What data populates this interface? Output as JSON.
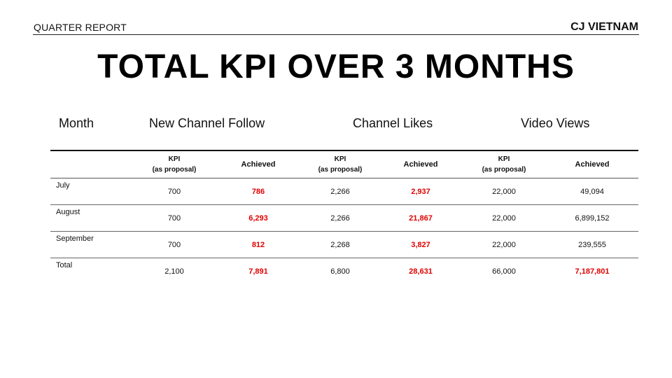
{
  "header": {
    "left_label": "QUARTER REPORT",
    "right_label": "CJ VIETNAM"
  },
  "title": "TOTAL KPI OVER 3 MONTHS",
  "group_headers": {
    "month": "Month",
    "follow": "New Channel Follow",
    "likes": "Channel Likes",
    "views": "Video Views"
  },
  "sub_headers": {
    "kpi_line1": "KPI",
    "kpi_line2": "(as proposal)",
    "achieved": "Achieved"
  },
  "rows": [
    {
      "label": "July",
      "follow_kpi": "700",
      "follow_ach": "786",
      "likes_kpi": "2,266",
      "likes_ach": "2,937",
      "views_kpi": "22,000",
      "views_ach": "49,094"
    },
    {
      "label": "August",
      "follow_kpi": "700",
      "follow_ach": "6,293",
      "likes_kpi": "2,266",
      "likes_ach": "21,867",
      "views_kpi": "22,000",
      "views_ach": "6,899,152"
    },
    {
      "label": "September",
      "follow_kpi": "700",
      "follow_ach": "812",
      "likes_kpi": "2,268",
      "likes_ach": "3,827",
      "views_kpi": "22,000",
      "views_ach": "239,555"
    },
    {
      "label": "Total",
      "follow_kpi": "2,100",
      "follow_ach": "7,891",
      "likes_kpi": "6,800",
      "likes_ach": "28,631",
      "views_kpi": "66,000",
      "views_ach": "7,187,801"
    }
  ],
  "colors": {
    "achieved_highlight": "#e00000",
    "text": "#111111"
  }
}
